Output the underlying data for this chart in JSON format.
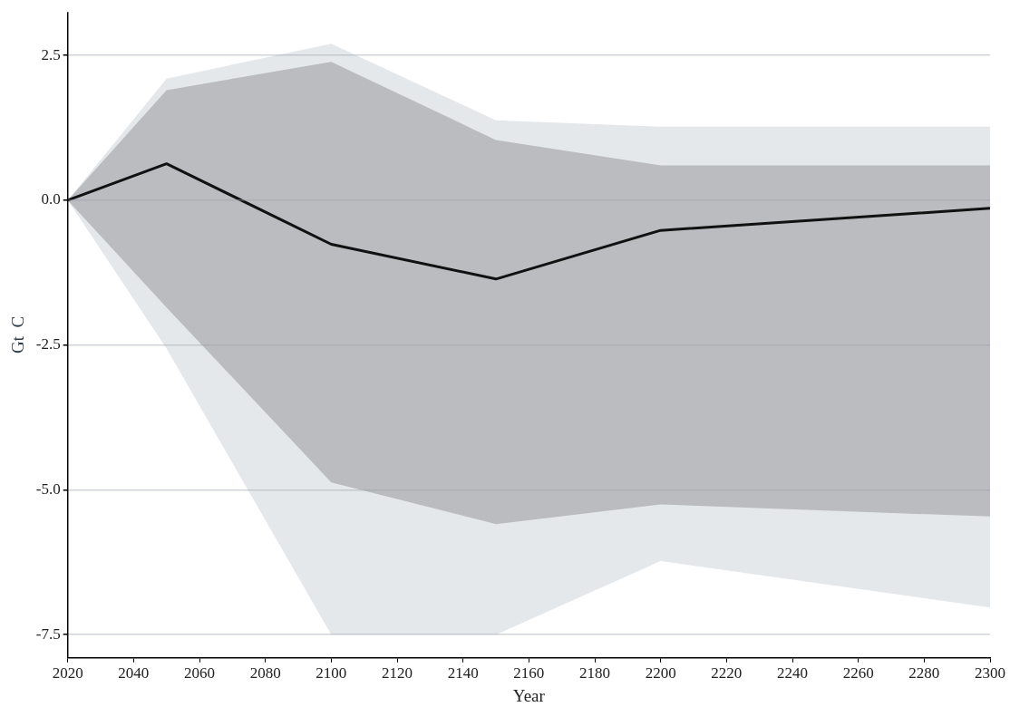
{
  "chart_data": {
    "type": "line",
    "xlabel": "Year",
    "ylabel": "Gt  C",
    "x": [
      2020,
      2050,
      2100,
      2150,
      2200,
      2300
    ],
    "series": [
      {
        "color": "#e5e8eb",
        "values": [
          null,
          null,
          null,
          null,
          null,
          null
        ],
        "lower": [
          0,
          -2.56,
          -7.5,
          -7.5,
          -6.23,
          -7.03
        ],
        "upper": [
          0,
          2.1,
          2.7,
          1.38,
          1.27,
          1.27
        ]
      },
      {
        "color": "#111111",
        "values": [
          0,
          0.63,
          -0.76,
          -1.36,
          -0.52,
          -0.14
        ],
        "lower": [
          0,
          -1.85,
          -4.87,
          -5.59,
          -5.25,
          -5.46
        ],
        "upper": [
          0,
          1.9,
          2.39,
          1.04,
          0.6,
          0.6
        ]
      }
    ],
    "xlim": [
      2020,
      2300
    ],
    "xticks": [
      2020,
      2040,
      2060,
      2080,
      2100,
      2120,
      2140,
      2160,
      2180,
      2200,
      2220,
      2240,
      2260,
      2280,
      2300
    ],
    "ylim": [
      -7.9,
      3.25
    ],
    "yticks": [
      {
        "value": -7.5,
        "label": "-7.5"
      },
      {
        "value": -5,
        "label": "-5.0"
      },
      {
        "value": -2.5,
        "label": "-2.5"
      },
      {
        "value": 0,
        "label": "0.0"
      },
      {
        "value": 2.5,
        "label": "2.5"
      }
    ],
    "grid": "y",
    "legend": false,
    "marker": "none"
  }
}
